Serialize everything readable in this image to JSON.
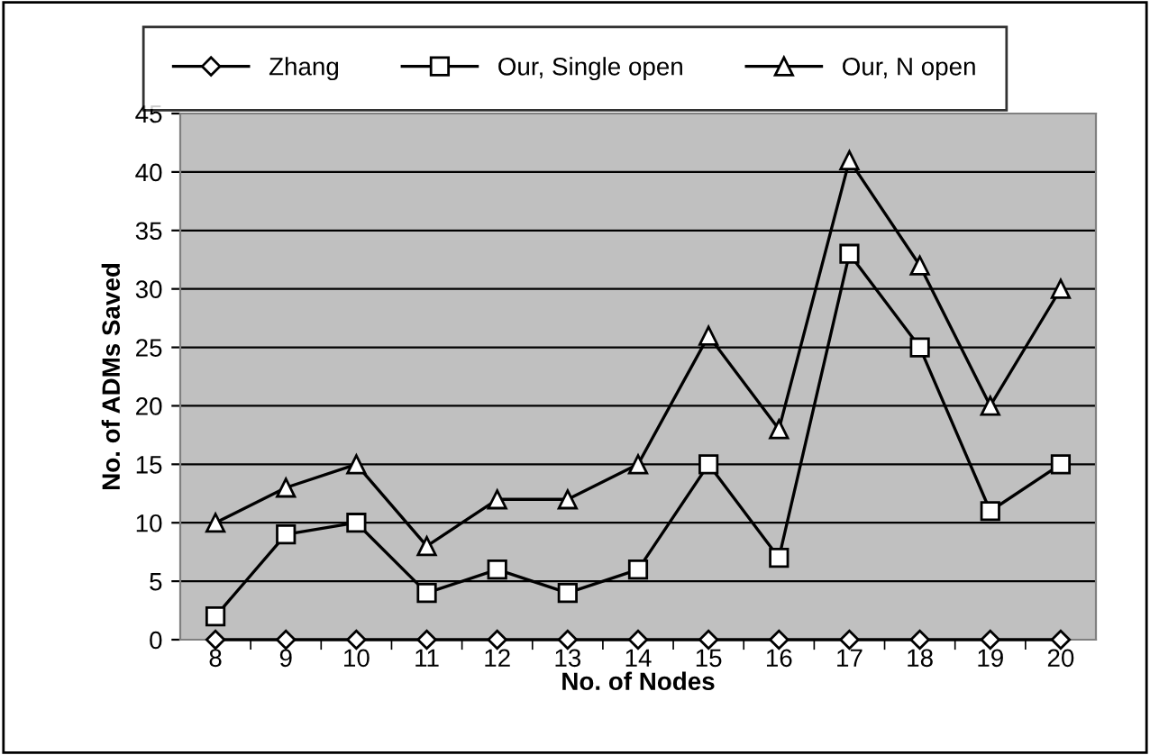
{
  "chart_data": {
    "type": "line",
    "xlabel": "No. of Nodes",
    "ylabel": "No. of ADMs Saved",
    "categories": [
      "8",
      "9",
      "10",
      "11",
      "12",
      "13",
      "14",
      "15",
      "16",
      "17",
      "18",
      "19",
      "20"
    ],
    "series": [
      {
        "name": "Zhang",
        "color": "#000000",
        "marker": "diamond",
        "values": [
          0,
          0,
          0,
          0,
          0,
          0,
          0,
          0,
          0,
          0,
          0,
          0,
          0
        ]
      },
      {
        "name": "Our, Single open",
        "color": "#000000",
        "marker": "square",
        "values": [
          2,
          9,
          10,
          4,
          6,
          4,
          6,
          15,
          7,
          33,
          25,
          11,
          15
        ]
      },
      {
        "name": "Our, N open",
        "color": "#000000",
        "marker": "triangle",
        "values": [
          10,
          13,
          15,
          8,
          12,
          12,
          15,
          26,
          18,
          41,
          32,
          20,
          30
        ]
      }
    ],
    "ylim": [
      0,
      45
    ],
    "yticks": [
      0,
      5,
      10,
      15,
      20,
      25,
      30,
      35,
      40,
      45
    ],
    "grid": "y",
    "legend": "top",
    "line_style": "solid"
  }
}
